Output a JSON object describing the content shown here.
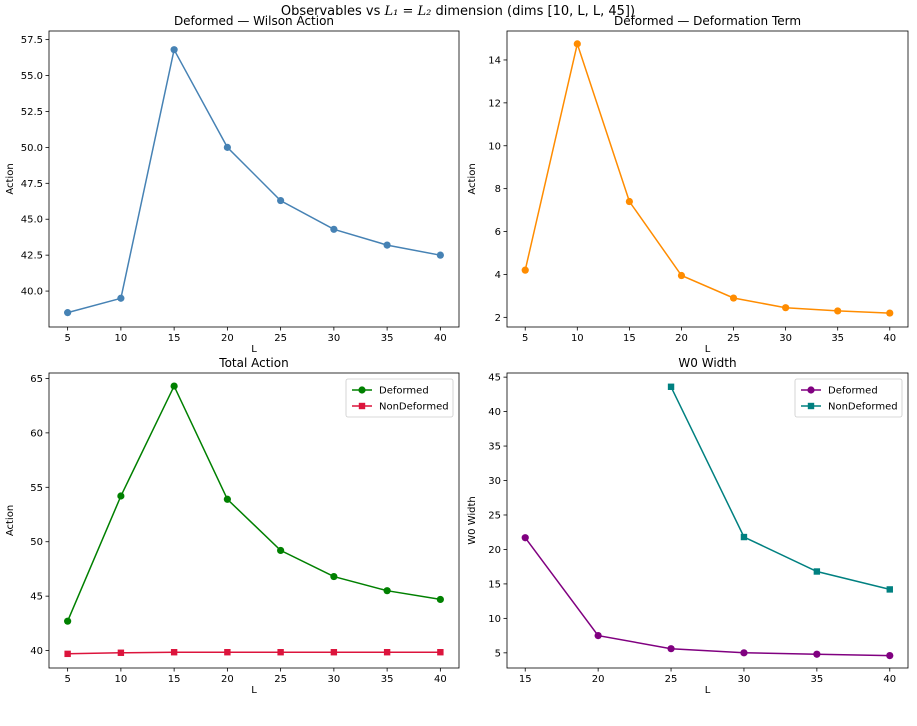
{
  "figure": {
    "suptitle_prefix": "Observables vs ",
    "suptitle_math": "L₁ = L₂",
    "suptitle_suffix": " dimension (dims [10, L, L, 45])"
  },
  "chart_data": [
    {
      "type": "line",
      "title": "Deformed — Wilson Action",
      "xlabel": "L",
      "ylabel": "Action",
      "xlim": [
        3.25,
        41.75
      ],
      "ylim": [
        37.5,
        58.1
      ],
      "xticks": [
        5,
        10,
        15,
        20,
        25,
        30,
        35,
        40
      ],
      "yticks": [
        40.0,
        42.5,
        45.0,
        47.5,
        50.0,
        52.5,
        55.0,
        57.5
      ],
      "ytick_decimals": 1,
      "grid": false,
      "legend": null,
      "series": [
        {
          "color": "#4682b4",
          "marker": "circle",
          "x": [
            5,
            10,
            15,
            20,
            25,
            30,
            35,
            40
          ],
          "y": [
            38.5,
            39.5,
            56.8,
            50.0,
            46.3,
            44.3,
            43.2,
            42.5
          ]
        }
      ]
    },
    {
      "type": "line",
      "title": "Deformed — Deformation Term",
      "xlabel": "L",
      "ylabel": "Action",
      "xlim": [
        3.25,
        41.75
      ],
      "ylim": [
        1.55,
        15.35
      ],
      "xticks": [
        5,
        10,
        15,
        20,
        25,
        30,
        35,
        40
      ],
      "yticks": [
        2,
        4,
        6,
        8,
        10,
        12,
        14
      ],
      "ytick_decimals": 0,
      "grid": false,
      "legend": null,
      "series": [
        {
          "color": "#ff8c00",
          "marker": "circle",
          "x": [
            5,
            10,
            15,
            20,
            25,
            30,
            35,
            40
          ],
          "y": [
            4.2,
            14.75,
            7.4,
            3.95,
            2.9,
            2.45,
            2.3,
            2.2
          ]
        }
      ]
    },
    {
      "type": "line",
      "title": "Total Action",
      "xlabel": "L",
      "ylabel": "Action",
      "xlim": [
        3.25,
        41.75
      ],
      "ylim": [
        38.4,
        65.5
      ],
      "xticks": [
        5,
        10,
        15,
        20,
        25,
        30,
        35,
        40
      ],
      "yticks": [
        40,
        45,
        50,
        55,
        60,
        65
      ],
      "ytick_decimals": 0,
      "grid": false,
      "legend": "top-right",
      "series": [
        {
          "name": "Deformed",
          "color": "#008000",
          "marker": "circle",
          "x": [
            5,
            10,
            15,
            20,
            25,
            30,
            35,
            40
          ],
          "y": [
            42.7,
            54.2,
            64.3,
            53.9,
            49.2,
            46.8,
            45.5,
            44.7
          ]
        },
        {
          "name": "NonDeformed",
          "color": "#dc143c",
          "marker": "square",
          "x": [
            5,
            10,
            15,
            20,
            25,
            30,
            35,
            40
          ],
          "y": [
            39.7,
            39.8,
            39.85,
            39.85,
            39.85,
            39.85,
            39.85,
            39.85
          ]
        }
      ]
    },
    {
      "type": "line",
      "title": "W0 Width",
      "xlabel": "L",
      "ylabel": "W0 Width",
      "xlim": [
        13.75,
        41.25
      ],
      "ylim": [
        2.8,
        45.6
      ],
      "xticks": [
        15,
        20,
        25,
        30,
        35,
        40
      ],
      "yticks": [
        5,
        10,
        15,
        20,
        25,
        30,
        35,
        40,
        45
      ],
      "ytick_decimals": 0,
      "grid": false,
      "legend": "top-right",
      "series": [
        {
          "name": "Deformed",
          "color": "#800080",
          "marker": "circle",
          "x": [
            15,
            20,
            25,
            30,
            35,
            40
          ],
          "y": [
            21.7,
            7.5,
            5.6,
            5.0,
            4.8,
            4.6
          ]
        },
        {
          "name": "NonDeformed",
          "color": "#008080",
          "marker": "square",
          "x": [
            25,
            30,
            35,
            40
          ],
          "y": [
            43.6,
            21.8,
            16.8,
            14.2
          ]
        }
      ]
    }
  ]
}
